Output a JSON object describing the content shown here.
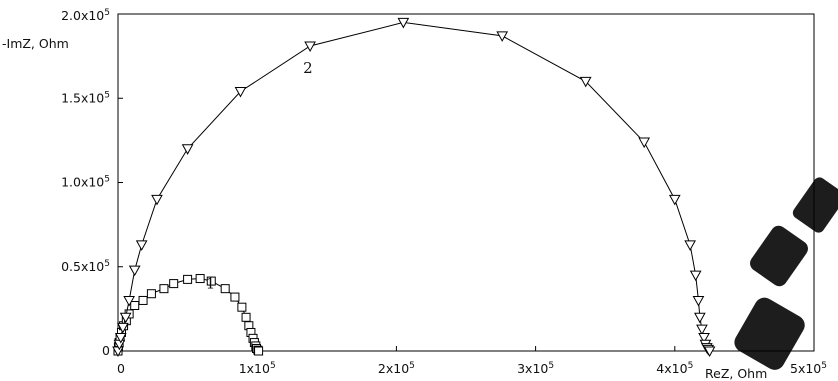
{
  "chart_data": {
    "type": "scatter",
    "title": "",
    "xlabel": "ReZ, Ohm",
    "ylabel": "-ImZ, Ohm",
    "xlim": [
      0,
      500000
    ],
    "ylim": [
      0,
      200000
    ],
    "grid": false,
    "legend": "none",
    "x_ticks": [
      {
        "value": 0,
        "label": "0"
      },
      {
        "value": 100000,
        "label": "1x10",
        "exp": "5"
      },
      {
        "value": 200000,
        "label": "2x10",
        "exp": "5"
      },
      {
        "value": 300000,
        "label": "3x10",
        "exp": "5"
      },
      {
        "value": 400000,
        "label": "4x10",
        "exp": "5"
      },
      {
        "value": 500000,
        "label": "5x10",
        "exp": "5"
      }
    ],
    "y_ticks": [
      {
        "value": 0,
        "label": "0"
      },
      {
        "value": 50000,
        "label": "0.5x10",
        "exp": "5"
      },
      {
        "value": 100000,
        "label": "1.0x10",
        "exp": "5"
      },
      {
        "value": 150000,
        "label": "1.5x10",
        "exp": "5"
      },
      {
        "value": 200000,
        "label": "2.0x10",
        "exp": "5"
      }
    ],
    "series": [
      {
        "name": "1",
        "marker": "square",
        "points": [
          [
            0,
            0
          ],
          [
            300,
            2500
          ],
          [
            800,
            5000
          ],
          [
            1500,
            8000
          ],
          [
            2500,
            11000
          ],
          [
            4000,
            15000
          ],
          [
            6000,
            18000
          ],
          [
            8000,
            22000
          ],
          [
            12000,
            27000
          ],
          [
            18000,
            30000
          ],
          [
            24000,
            34000
          ],
          [
            33000,
            37000
          ],
          [
            40000,
            40000
          ],
          [
            50000,
            42500
          ],
          [
            59000,
            43000
          ],
          [
            67000,
            41500
          ],
          [
            77000,
            37000
          ],
          [
            84000,
            32000
          ],
          [
            89000,
            26000
          ],
          [
            92000,
            20000
          ],
          [
            94000,
            15000
          ],
          [
            95500,
            11000
          ],
          [
            97000,
            7500
          ],
          [
            98000,
            5000
          ],
          [
            99000,
            3000
          ],
          [
            99500,
            1500
          ],
          [
            100500,
            500
          ],
          [
            101000,
            0
          ]
        ]
      },
      {
        "name": "2",
        "marker": "triangle-down",
        "points": [
          [
            0,
            0
          ],
          [
            1000,
            4000
          ],
          [
            2000,
            8000
          ],
          [
            3500,
            14000
          ],
          [
            5500,
            20000
          ],
          [
            8000,
            30000
          ],
          [
            12000,
            48000
          ],
          [
            17000,
            63000
          ],
          [
            28000,
            90000
          ],
          [
            50000,
            120000
          ],
          [
            88000,
            154000
          ],
          [
            138000,
            181000
          ],
          [
            205000,
            195000
          ],
          [
            276000,
            187000
          ],
          [
            336000,
            160000
          ],
          [
            378000,
            124000
          ],
          [
            400000,
            90000
          ],
          [
            411000,
            63000
          ],
          [
            415000,
            45000
          ],
          [
            417000,
            30000
          ],
          [
            418000,
            20000
          ],
          [
            419500,
            13000
          ],
          [
            421000,
            8000
          ],
          [
            422000,
            4000
          ],
          [
            423000,
            2000
          ],
          [
            424000,
            1000
          ],
          [
            425000,
            0
          ]
        ]
      }
    ],
    "annotations": [
      {
        "text": "1",
        "x": 63000,
        "y": 37000
      },
      {
        "text": "2",
        "x": 133000,
        "y": 165000
      }
    ]
  },
  "watermark": {
    "text": "rc",
    "color": "#1d1d1d"
  }
}
